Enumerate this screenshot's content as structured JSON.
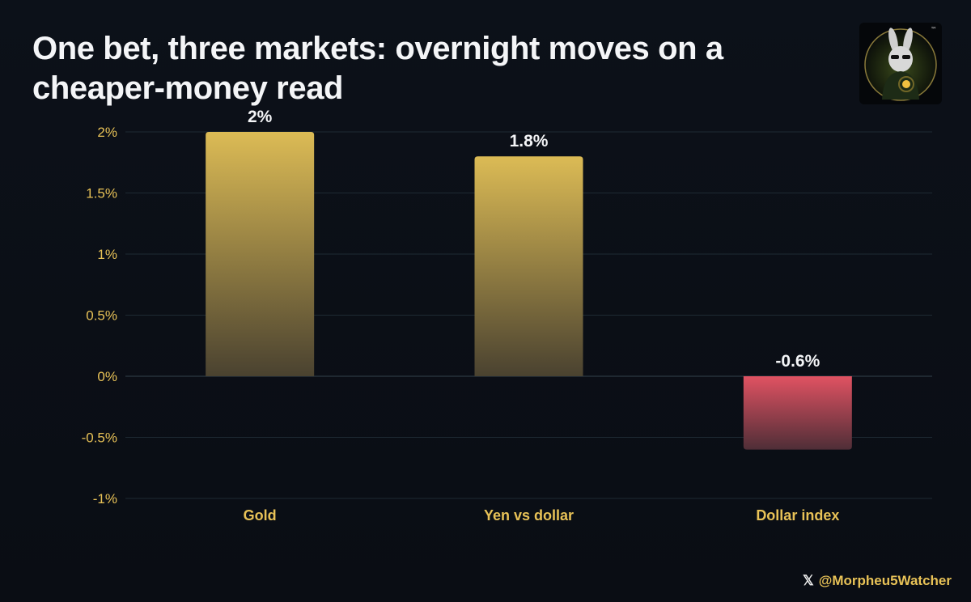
{
  "header": {
    "title": "One bet, three markets: overnight moves on a cheaper-money read"
  },
  "logo": {
    "name": "rabbit-logo",
    "trademark": "™"
  },
  "credit": {
    "icon": "x-icon",
    "icon_glyph": "𝕏",
    "handle": "@Morpheu5Watcher"
  },
  "colors": {
    "gold_top": "#dcbb55",
    "gold_bottom": "#4a4230",
    "red_top": "#e05262",
    "red_bottom": "#4f2e37",
    "tick": "#e8c257",
    "grid": "#1e2a33"
  },
  "chart_data": {
    "type": "bar",
    "title": "One bet, three markets: overnight moves on a cheaper-money read",
    "categories": [
      "Gold",
      "Yen vs dollar",
      "Dollar index"
    ],
    "values": [
      2,
      1.8,
      -0.6
    ],
    "value_labels": [
      "2%",
      "1.8%",
      "-0.6%"
    ],
    "yticks": [
      2,
      1.5,
      1,
      0.5,
      0,
      -0.5,
      -1
    ],
    "ytick_labels": [
      "2%",
      "1.5%",
      "1%",
      "0.5%",
      "0%",
      "-0.5%",
      "-1%"
    ],
    "ylim": [
      -1,
      2
    ],
    "xlabel": "",
    "ylabel": "",
    "grid": true,
    "legend": "none"
  }
}
